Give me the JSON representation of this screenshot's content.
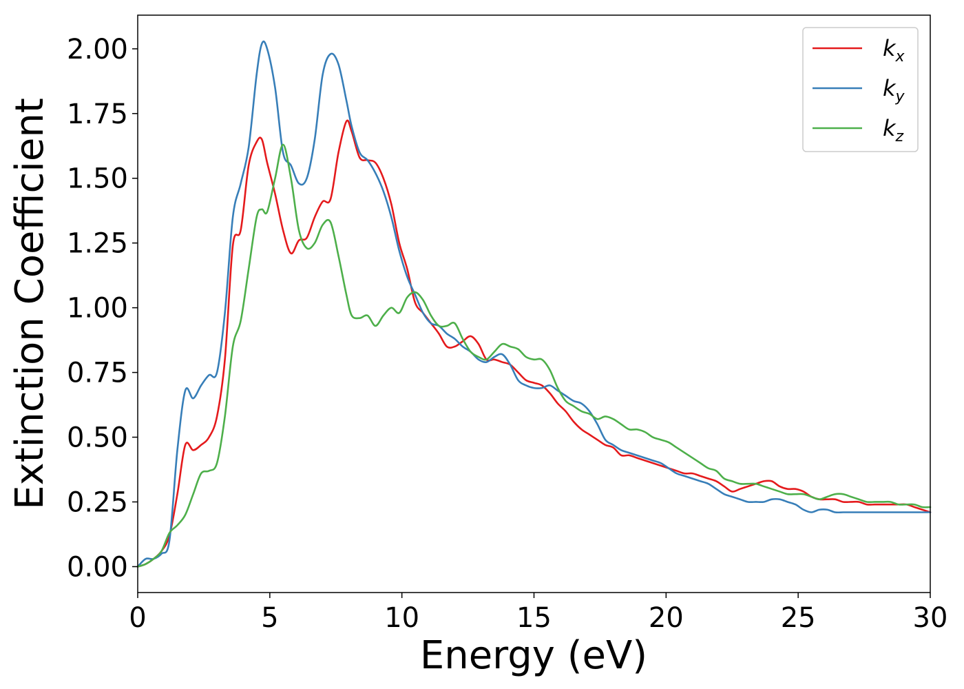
{
  "chart_data": {
    "type": "line",
    "title": "",
    "xlabel": "Energy (eV)",
    "ylabel": "Extinction Coefficient",
    "xlim": [
      0,
      30
    ],
    "ylim": [
      -0.1,
      2.13
    ],
    "xticks": [
      0,
      5,
      10,
      15,
      20,
      25,
      30
    ],
    "xtick_labels": [
      "0",
      "5",
      "10",
      "15",
      "20",
      "25",
      "30"
    ],
    "yticks": [
      0,
      0.25,
      0.5,
      0.75,
      1.0,
      1.25,
      1.5,
      1.75,
      2.0
    ],
    "ytick_labels": [
      "0.00",
      "0.25",
      "0.50",
      "0.75",
      "1.00",
      "1.25",
      "1.50",
      "1.75",
      "2.00"
    ],
    "grid": false,
    "legend_position": "top-right",
    "series": [
      {
        "name": "k",
        "subscript": "x",
        "color": "#e41a1c",
        "x": [
          0,
          0.3,
          0.6,
          0.9,
          1.2,
          1.5,
          1.8,
          2.1,
          2.4,
          2.7,
          3.0,
          3.3,
          3.6,
          3.9,
          4.2,
          4.5,
          4.7,
          4.9,
          5.2,
          5.5,
          5.8,
          6.1,
          6.4,
          6.7,
          7.0,
          7.3,
          7.6,
          7.9,
          8.1,
          8.4,
          8.7,
          9.0,
          9.3,
          9.6,
          9.9,
          10.2,
          10.5,
          10.8,
          11.1,
          11.4,
          11.7,
          12.0,
          12.3,
          12.6,
          12.9,
          13.2,
          13.5,
          13.8,
          14.1,
          14.4,
          14.7,
          15.0,
          15.3,
          15.6,
          15.9,
          16.2,
          16.5,
          16.8,
          17.1,
          17.4,
          17.7,
          18.0,
          18.3,
          18.6,
          18.9,
          19.2,
          19.5,
          19.8,
          20.1,
          20.4,
          20.7,
          21.0,
          21.3,
          21.6,
          21.9,
          22.2,
          22.5,
          22.8,
          23.1,
          23.4,
          23.7,
          24.0,
          24.3,
          24.6,
          24.9,
          25.2,
          25.5,
          25.8,
          26.1,
          26.4,
          26.7,
          27.0,
          27.3,
          27.6,
          27.9,
          28.2,
          28.5,
          28.8,
          29.1,
          29.4,
          29.7,
          30.0
        ],
        "y": [
          0.0,
          0.01,
          0.03,
          0.06,
          0.12,
          0.28,
          0.47,
          0.45,
          0.47,
          0.5,
          0.58,
          0.8,
          1.24,
          1.3,
          1.55,
          1.64,
          1.65,
          1.56,
          1.44,
          1.3,
          1.21,
          1.26,
          1.27,
          1.35,
          1.41,
          1.42,
          1.6,
          1.72,
          1.68,
          1.58,
          1.57,
          1.56,
          1.5,
          1.4,
          1.25,
          1.15,
          1.02,
          0.98,
          0.94,
          0.9,
          0.85,
          0.85,
          0.87,
          0.89,
          0.86,
          0.8,
          0.8,
          0.79,
          0.78,
          0.75,
          0.72,
          0.71,
          0.7,
          0.67,
          0.63,
          0.6,
          0.56,
          0.53,
          0.51,
          0.49,
          0.47,
          0.46,
          0.43,
          0.43,
          0.42,
          0.41,
          0.4,
          0.39,
          0.38,
          0.37,
          0.36,
          0.36,
          0.35,
          0.34,
          0.33,
          0.31,
          0.29,
          0.3,
          0.31,
          0.32,
          0.33,
          0.33,
          0.31,
          0.3,
          0.3,
          0.29,
          0.27,
          0.26,
          0.26,
          0.26,
          0.25,
          0.25,
          0.25,
          0.24,
          0.24,
          0.24,
          0.24,
          0.24,
          0.24,
          0.23,
          0.22,
          0.21
        ]
      },
      {
        "name": "k",
        "subscript": "y",
        "color": "#377eb8",
        "x": [
          0,
          0.3,
          0.6,
          0.9,
          1.2,
          1.5,
          1.8,
          2.1,
          2.4,
          2.7,
          3.0,
          3.3,
          3.6,
          3.9,
          4.2,
          4.5,
          4.7,
          4.9,
          5.2,
          5.5,
          5.8,
          6.1,
          6.4,
          6.7,
          7.0,
          7.3,
          7.6,
          7.9,
          8.1,
          8.4,
          8.7,
          9.0,
          9.3,
          9.6,
          9.9,
          10.2,
          10.5,
          10.8,
          11.1,
          11.4,
          11.7,
          12.0,
          12.3,
          12.6,
          12.9,
          13.2,
          13.5,
          13.8,
          14.1,
          14.4,
          14.7,
          15.0,
          15.3,
          15.6,
          15.9,
          16.2,
          16.5,
          16.8,
          17.1,
          17.4,
          17.7,
          18.0,
          18.3,
          18.6,
          18.9,
          19.2,
          19.5,
          19.8,
          20.1,
          20.4,
          20.7,
          21.0,
          21.3,
          21.6,
          21.9,
          22.2,
          22.5,
          22.8,
          23.1,
          23.4,
          23.7,
          24.0,
          24.3,
          24.6,
          24.9,
          25.2,
          25.5,
          25.8,
          26.1,
          26.4,
          26.7,
          27.0,
          27.3,
          27.6,
          27.9,
          28.2,
          28.5,
          28.8,
          29.1,
          29.4,
          29.7,
          30.0
        ],
        "y": [
          0.0,
          0.03,
          0.03,
          0.05,
          0.1,
          0.45,
          0.68,
          0.65,
          0.7,
          0.74,
          0.75,
          0.98,
          1.35,
          1.48,
          1.62,
          1.9,
          2.02,
          2.0,
          1.85,
          1.6,
          1.55,
          1.48,
          1.5,
          1.65,
          1.9,
          1.98,
          1.94,
          1.8,
          1.7,
          1.6,
          1.57,
          1.52,
          1.45,
          1.35,
          1.22,
          1.12,
          1.05,
          0.98,
          0.94,
          0.93,
          0.9,
          0.88,
          0.85,
          0.83,
          0.8,
          0.79,
          0.81,
          0.82,
          0.78,
          0.72,
          0.7,
          0.69,
          0.69,
          0.7,
          0.68,
          0.66,
          0.64,
          0.63,
          0.6,
          0.55,
          0.49,
          0.47,
          0.45,
          0.44,
          0.43,
          0.42,
          0.41,
          0.4,
          0.38,
          0.36,
          0.35,
          0.34,
          0.33,
          0.32,
          0.3,
          0.28,
          0.27,
          0.26,
          0.25,
          0.25,
          0.25,
          0.26,
          0.26,
          0.25,
          0.24,
          0.22,
          0.21,
          0.22,
          0.22,
          0.21,
          0.21,
          0.21,
          0.21,
          0.21,
          0.21,
          0.21,
          0.21,
          0.21,
          0.21,
          0.21,
          0.21,
          0.21
        ]
      },
      {
        "name": "k",
        "subscript": "z",
        "color": "#4daf4a",
        "x": [
          0,
          0.3,
          0.6,
          0.9,
          1.2,
          1.5,
          1.8,
          2.1,
          2.4,
          2.7,
          3.0,
          3.3,
          3.6,
          3.9,
          4.2,
          4.5,
          4.7,
          4.9,
          5.2,
          5.5,
          5.8,
          6.1,
          6.4,
          6.7,
          7.0,
          7.3,
          7.6,
          7.9,
          8.1,
          8.4,
          8.7,
          9.0,
          9.3,
          9.6,
          9.9,
          10.2,
          10.5,
          10.8,
          11.1,
          11.4,
          11.7,
          12.0,
          12.3,
          12.6,
          12.9,
          13.2,
          13.5,
          13.8,
          14.1,
          14.4,
          14.7,
          15.0,
          15.3,
          15.6,
          15.9,
          16.2,
          16.5,
          16.8,
          17.1,
          17.4,
          17.7,
          18.0,
          18.3,
          18.6,
          18.9,
          19.2,
          19.5,
          19.8,
          20.1,
          20.4,
          20.7,
          21.0,
          21.3,
          21.6,
          21.9,
          22.2,
          22.5,
          22.8,
          23.1,
          23.4,
          23.7,
          24.0,
          24.3,
          24.6,
          24.9,
          25.2,
          25.5,
          25.8,
          26.1,
          26.4,
          26.7,
          27.0,
          27.3,
          27.6,
          27.9,
          28.2,
          28.5,
          28.8,
          29.1,
          29.4,
          29.7,
          30.0
        ],
        "y": [
          0.0,
          0.01,
          0.03,
          0.06,
          0.13,
          0.16,
          0.2,
          0.28,
          0.36,
          0.37,
          0.4,
          0.58,
          0.85,
          0.95,
          1.15,
          1.35,
          1.38,
          1.37,
          1.5,
          1.63,
          1.5,
          1.3,
          1.23,
          1.25,
          1.32,
          1.33,
          1.2,
          1.05,
          0.97,
          0.96,
          0.97,
          0.93,
          0.97,
          1.0,
          0.98,
          1.04,
          1.06,
          1.03,
          0.97,
          0.93,
          0.93,
          0.94,
          0.88,
          0.83,
          0.81,
          0.8,
          0.83,
          0.86,
          0.85,
          0.84,
          0.81,
          0.8,
          0.8,
          0.76,
          0.69,
          0.64,
          0.62,
          0.6,
          0.59,
          0.57,
          0.58,
          0.57,
          0.55,
          0.53,
          0.53,
          0.52,
          0.5,
          0.49,
          0.48,
          0.46,
          0.44,
          0.42,
          0.4,
          0.38,
          0.37,
          0.34,
          0.33,
          0.32,
          0.32,
          0.32,
          0.31,
          0.3,
          0.29,
          0.28,
          0.28,
          0.28,
          0.27,
          0.26,
          0.27,
          0.28,
          0.28,
          0.27,
          0.26,
          0.25,
          0.25,
          0.25,
          0.25,
          0.24,
          0.24,
          0.24,
          0.23,
          0.23
        ]
      }
    ]
  }
}
